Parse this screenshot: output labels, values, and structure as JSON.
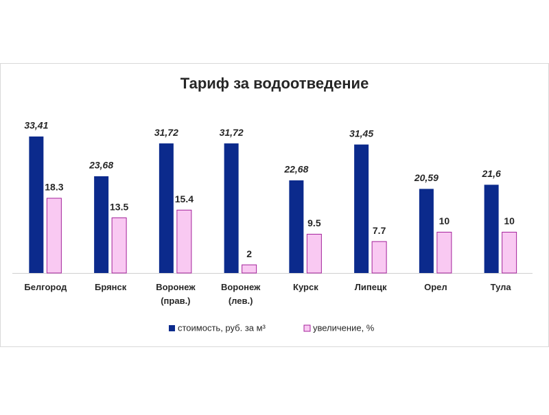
{
  "chart_data": {
    "type": "bar",
    "title": "Тариф за водоотведение",
    "categories": [
      "Белгород",
      "Брянск",
      "Воронеж (прав.)",
      "Воронеж (лев.)",
      "Курск",
      "Липецк",
      "Орел",
      "Тула"
    ],
    "series": [
      {
        "name": "стоимость, руб. за м³",
        "color": "#0b2a8c",
        "values": [
          33.41,
          23.68,
          31.72,
          31.72,
          22.68,
          31.45,
          20.59,
          21.6
        ],
        "value_labels": [
          "33,41",
          "23,68",
          "31,72",
          "31,72",
          "22,68",
          "31,45",
          "20,59",
          "21,6"
        ]
      },
      {
        "name": "увеличение, %",
        "color": "#f9c9f2",
        "values": [
          18.3,
          13.5,
          15.4,
          2,
          9.5,
          7.7,
          10,
          10
        ]
      }
    ],
    "legend": "bottom"
  }
}
